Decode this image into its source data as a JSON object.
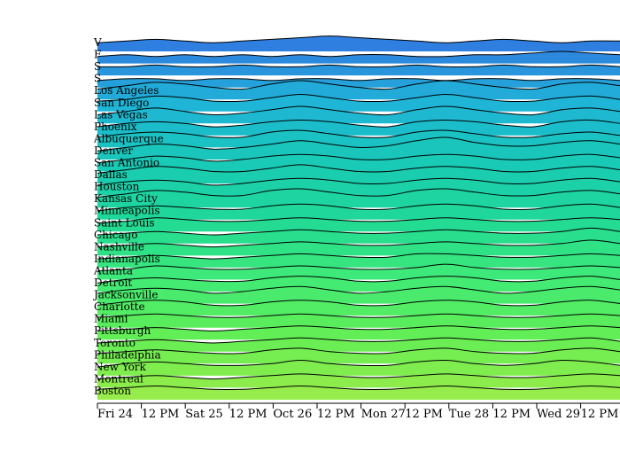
{
  "chart_data": {
    "type": "area",
    "chart_style": "ridgeline",
    "title": "",
    "xlabel": "",
    "ylabel": "",
    "x_ticks": [
      "Fri 24",
      "12 PM",
      "Sat 25",
      "12 PM",
      "Oct 26",
      "12 PM",
      "Mon 27",
      "12 PM",
      "Tue 28",
      "12 PM",
      "Wed 29",
      "12 PM"
    ],
    "x_range_hours": [
      0,
      144
    ],
    "color_scale": [
      "#2f7fe0",
      "#1fb4d8",
      "#19c9b8",
      "#20d996",
      "#3eea78",
      "#62ee55",
      "#96ec4a"
    ],
    "series": [
      {
        "name": "V",
        "values": [
          2,
          3,
          4,
          3,
          2,
          3,
          4,
          5,
          6,
          5,
          4,
          3,
          2,
          3,
          4,
          3,
          2,
          3,
          3
        ]
      },
      {
        "name": "F",
        "values": [
          1,
          2,
          1,
          2,
          1,
          2,
          1,
          2,
          1,
          2,
          2,
          1,
          1,
          2,
          2,
          3,
          4,
          3,
          2
        ]
      },
      {
        "name": "S",
        "values": [
          2,
          2,
          3,
          2,
          2,
          3,
          2,
          2,
          3,
          2,
          2,
          3,
          2,
          2,
          3,
          2,
          2,
          3,
          2
        ]
      },
      {
        "name": "S",
        "values": [
          1,
          2,
          2,
          1,
          2,
          2,
          1,
          2,
          2,
          1,
          2,
          2,
          1,
          2,
          2,
          1,
          2,
          2,
          1
        ]
      },
      {
        "name": "Los Angeles",
        "values": [
          3,
          5,
          7,
          6,
          4,
          3,
          6,
          8,
          6,
          4,
          3,
          6,
          8,
          6,
          4,
          3,
          6,
          7,
          5
        ]
      },
      {
        "name": "San Diego",
        "values": [
          3,
          4,
          6,
          5,
          3,
          3,
          5,
          7,
          5,
          3,
          3,
          5,
          7,
          5,
          3,
          3,
          5,
          6,
          4
        ]
      },
      {
        "name": "Las Vegas",
        "values": [
          2,
          4,
          6,
          4,
          2,
          3,
          5,
          7,
          5,
          3,
          2,
          5,
          7,
          5,
          3,
          2,
          5,
          6,
          4
        ]
      },
      {
        "name": "Phoenix",
        "values": [
          2,
          4,
          5,
          4,
          2,
          3,
          5,
          6,
          5,
          3,
          2,
          5,
          6,
          5,
          3,
          2,
          5,
          6,
          4
        ]
      },
      {
        "name": "Albuquerque",
        "values": [
          3,
          5,
          6,
          5,
          3,
          3,
          6,
          7,
          5,
          3,
          3,
          6,
          7,
          5,
          3,
          3,
          5,
          6,
          4
        ]
      },
      {
        "name": "Denver",
        "values": [
          2,
          4,
          6,
          5,
          3,
          4,
          6,
          8,
          6,
          4,
          5,
          8,
          10,
          7,
          5,
          5,
          7,
          8,
          6
        ]
      },
      {
        "name": "San Antonio",
        "values": [
          2,
          4,
          6,
          5,
          3,
          4,
          6,
          7,
          6,
          4,
          4,
          6,
          7,
          6,
          4,
          4,
          6,
          7,
          5
        ]
      },
      {
        "name": "Dallas",
        "values": [
          3,
          5,
          7,
          6,
          4,
          4,
          6,
          8,
          6,
          4,
          4,
          6,
          7,
          6,
          4,
          4,
          6,
          7,
          5
        ]
      },
      {
        "name": "Houston",
        "values": [
          3,
          5,
          6,
          5,
          3,
          4,
          6,
          7,
          6,
          4,
          4,
          6,
          7,
          6,
          4,
          4,
          6,
          7,
          5
        ]
      },
      {
        "name": "Kansas City",
        "values": [
          3,
          5,
          7,
          6,
          4,
          4,
          7,
          8,
          6,
          4,
          4,
          7,
          8,
          6,
          4,
          4,
          6,
          7,
          5
        ]
      },
      {
        "name": "Minneapolis",
        "values": [
          2,
          4,
          5,
          4,
          3,
          3,
          5,
          6,
          5,
          3,
          3,
          5,
          6,
          5,
          3,
          3,
          5,
          6,
          4
        ]
      },
      {
        "name": "Saint Louis",
        "values": [
          2,
          3,
          5,
          4,
          3,
          3,
          4,
          5,
          4,
          3,
          3,
          4,
          5,
          4,
          3,
          3,
          4,
          5,
          4
        ]
      },
      {
        "name": "Chicago",
        "values": [
          2,
          3,
          4,
          3,
          2,
          3,
          4,
          5,
          4,
          3,
          3,
          4,
          5,
          4,
          3,
          3,
          4,
          6,
          4
        ]
      },
      {
        "name": "Nashville",
        "values": [
          2,
          3,
          4,
          3,
          2,
          3,
          4,
          5,
          4,
          3,
          3,
          4,
          5,
          4,
          3,
          3,
          4,
          6,
          4
        ]
      },
      {
        "name": "Indianapolis",
        "values": [
          2,
          3,
          4,
          3,
          2,
          3,
          4,
          5,
          4,
          3,
          3,
          5,
          5,
          4,
          3,
          3,
          4,
          5,
          4
        ]
      },
      {
        "name": "Atlanta",
        "values": [
          2,
          3,
          5,
          4,
          3,
          3,
          4,
          5,
          4,
          3,
          3,
          4,
          6,
          4,
          3,
          3,
          4,
          5,
          4
        ]
      },
      {
        "name": "Detroit",
        "values": [
          2,
          4,
          5,
          4,
          3,
          3,
          5,
          6,
          5,
          3,
          3,
          5,
          6,
          5,
          3,
          3,
          5,
          6,
          4
        ]
      },
      {
        "name": "Jacksonville",
        "values": [
          3,
          5,
          6,
          5,
          3,
          4,
          6,
          7,
          5,
          3,
          4,
          6,
          7,
          5,
          3,
          4,
          6,
          7,
          5
        ]
      },
      {
        "name": "Charlotte",
        "values": [
          3,
          5,
          6,
          5,
          3,
          3,
          5,
          6,
          5,
          3,
          3,
          5,
          6,
          5,
          3,
          3,
          5,
          6,
          4
        ]
      },
      {
        "name": "Miami",
        "values": [
          3,
          4,
          5,
          4,
          3,
          3,
          4,
          5,
          4,
          3,
          3,
          4,
          5,
          4,
          3,
          3,
          4,
          5,
          4
        ]
      },
      {
        "name": "Pittsburgh",
        "values": [
          2,
          3,
          4,
          3,
          2,
          3,
          4,
          5,
          4,
          3,
          3,
          4,
          5,
          4,
          3,
          3,
          4,
          5,
          4
        ]
      },
      {
        "name": "Toronto",
        "values": [
          2,
          3,
          4,
          3,
          2,
          3,
          4,
          5,
          4,
          3,
          3,
          4,
          5,
          4,
          3,
          3,
          4,
          5,
          3
        ]
      },
      {
        "name": "Philadelphia",
        "values": [
          3,
          4,
          5,
          4,
          3,
          3,
          5,
          6,
          4,
          3,
          3,
          5,
          6,
          4,
          3,
          3,
          5,
          6,
          4
        ]
      },
      {
        "name": "New York",
        "values": [
          2,
          4,
          5,
          4,
          3,
          3,
          4,
          6,
          4,
          3,
          3,
          5,
          6,
          4,
          3,
          4,
          6,
          5,
          3
        ]
      },
      {
        "name": "Montreal",
        "values": [
          2,
          3,
          4,
          3,
          2,
          3,
          4,
          5,
          4,
          3,
          3,
          4,
          5,
          4,
          3,
          3,
          4,
          5,
          4
        ]
      },
      {
        "name": "Boston",
        "values": [
          3,
          4,
          5,
          4,
          3,
          3,
          4,
          5,
          4,
          3,
          3,
          4,
          5,
          4,
          3,
          3,
          4,
          5,
          4
        ]
      }
    ]
  }
}
